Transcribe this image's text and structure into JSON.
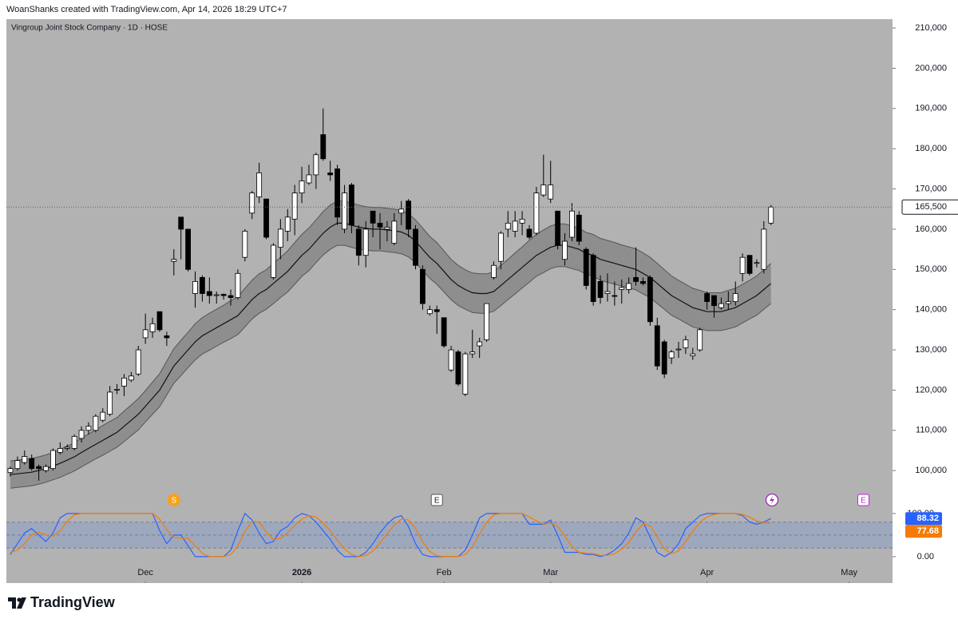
{
  "header": "WoanShanks created with TradingView.com, Apr 14, 2026 18:29 UTC+7",
  "brand": "TradingView",
  "chart_data": [
    {
      "type": "candlestick",
      "title": "Vingroup Joint Stock Company · 1D · HOSE",
      "up_color": "#ffffff",
      "down_color": "#000000",
      "grid": false,
      "xlim": [
        -0.56,
        124.1
      ],
      "xticks": [
        {
          "value": 19,
          "label": "Dec"
        },
        {
          "value": 41,
          "label": "2026"
        },
        {
          "value": 61,
          "label": "Feb"
        },
        {
          "value": 76,
          "label": "Mar"
        },
        {
          "value": 98,
          "label": "Apr"
        },
        {
          "value": 118,
          "label": "May"
        }
      ],
      "ylim": [
        90500,
        212200
      ],
      "yticks": [
        {
          "value": 100000,
          "label": "100,000"
        },
        {
          "value": 110000,
          "label": "110,000"
        },
        {
          "value": 120000,
          "label": "120,000"
        },
        {
          "value": 130000,
          "label": "130,000"
        },
        {
          "value": 140000,
          "label": "140,000"
        },
        {
          "value": 150000,
          "label": "150,000"
        },
        {
          "value": 160000,
          "label": "160,000"
        },
        {
          "value": 170000,
          "label": "170,000"
        },
        {
          "value": 180000,
          "label": "180,000"
        },
        {
          "value": 190000,
          "label": "190,000"
        },
        {
          "value": 200000,
          "label": "200,000"
        },
        {
          "value": 210000,
          "label": "210,000"
        }
      ],
      "open": [
        99500,
        100500,
        102000,
        103000,
        101000,
        100000,
        100500,
        104500,
        105500,
        105500,
        108000,
        110000,
        110000,
        112500,
        114000,
        120000,
        121000,
        122500,
        124000,
        133000,
        134500,
        139500,
        133500,
        152000,
        163000,
        160000,
        144000,
        148000,
        144500,
        143500,
        143800,
        143500,
        143000,
        153000,
        164000,
        168000,
        167500,
        148000,
        155500,
        159500,
        162500,
        169000,
        171500,
        173500,
        183500,
        174000,
        175000,
        160000,
        171000,
        160000,
        153500,
        164500,
        161500,
        160000,
        156500,
        164000,
        167000,
        160000,
        150000,
        139000,
        140000,
        138000,
        125000,
        129500,
        119000,
        129000,
        131000,
        132500,
        148000,
        152000,
        160000,
        159500,
        161500,
        160000,
        159000,
        168500,
        167500,
        164500,
        152500,
        158000,
        163500,
        155000,
        153500,
        147000,
        144000,
        143500,
        145000,
        145000,
        148000,
        147000,
        148000,
        136000,
        132000,
        128000,
        130000,
        130500,
        128500,
        130000,
        144000,
        143500,
        140500,
        141500,
        142000,
        149000,
        153500,
        151500,
        150000,
        161500
      ],
      "high": [
        101000,
        103500,
        105000,
        104000,
        101500,
        101500,
        105500,
        107000,
        106500,
        109000,
        111000,
        112000,
        114000,
        115500,
        121000,
        121500,
        124000,
        124500,
        131000,
        139000,
        138000,
        139500,
        134500,
        155000,
        163000,
        160000,
        149500,
        148500,
        148000,
        144500,
        144000,
        145000,
        150000,
        160000,
        169500,
        176500,
        167500,
        156500,
        162500,
        165000,
        171000,
        175500,
        176000,
        179000,
        190000,
        177000,
        176000,
        171000,
        171500,
        161000,
        162000,
        164500,
        164000,
        162000,
        164000,
        167000,
        167500,
        161000,
        151000,
        141000,
        141000,
        138000,
        131000,
        130000,
        129500,
        135000,
        133000,
        141500,
        152000,
        159500,
        164500,
        164500,
        164500,
        161000,
        170500,
        178500,
        177000,
        164500,
        159000,
        166500,
        164500,
        155500,
        154000,
        148500,
        149000,
        147000,
        147500,
        148000,
        155500,
        148000,
        148500,
        138000,
        132500,
        130000,
        132000,
        133500,
        130500,
        135500,
        144500,
        143500,
        143000,
        144500,
        147000,
        154000,
        153500,
        152500,
        162000,
        166000
      ],
      "low": [
        98500,
        100000,
        101500,
        100000,
        97500,
        99500,
        100000,
        104000,
        105000,
        105000,
        107000,
        109000,
        109500,
        112000,
        113500,
        119000,
        118500,
        122000,
        123500,
        131500,
        133000,
        134500,
        131000,
        148500,
        152500,
        149500,
        140500,
        142000,
        141500,
        141500,
        142500,
        141000,
        142500,
        152000,
        162500,
        166500,
        157500,
        147500,
        152500,
        157000,
        158500,
        166500,
        171000,
        170000,
        177000,
        172000,
        161000,
        159000,
        159000,
        151000,
        150500,
        158000,
        155000,
        157000,
        156000,
        161000,
        158000,
        150000,
        140000,
        138500,
        134000,
        130500,
        124500,
        121000,
        118500,
        128000,
        128000,
        132000,
        147500,
        150000,
        158000,
        158000,
        158500,
        157500,
        158500,
        168000,
        166500,
        155000,
        151000,
        157000,
        156000,
        145000,
        141000,
        141500,
        142000,
        141000,
        141500,
        144000,
        146000,
        146000,
        136000,
        125000,
        123000,
        126500,
        128000,
        129000,
        127500,
        129500,
        140000,
        138000,
        140000,
        140000,
        141000,
        147000,
        148500,
        150500,
        149000,
        161000
      ],
      "close": [
        100500,
        102500,
        103500,
        100500,
        100500,
        101000,
        105000,
        105500,
        105800,
        108500,
        110000,
        111000,
        113500,
        114500,
        119500,
        120200,
        123000,
        123500,
        130000,
        135000,
        136500,
        135000,
        133000,
        152500,
        160000,
        150000,
        147000,
        144000,
        143500,
        143700,
        143500,
        143000,
        149000,
        159500,
        169000,
        174000,
        158000,
        156000,
        160000,
        163000,
        169000,
        172000,
        173500,
        178500,
        177500,
        173500,
        163000,
        169000,
        161000,
        153500,
        160000,
        161500,
        160500,
        160500,
        162000,
        165000,
        160000,
        151000,
        141500,
        140000,
        139500,
        131000,
        130000,
        121500,
        129000,
        129500,
        132000,
        141500,
        151000,
        159000,
        161500,
        162000,
        162500,
        158000,
        169000,
        171000,
        171000,
        156000,
        157000,
        164500,
        157000,
        146000,
        142000,
        143000,
        144500,
        143300,
        145500,
        146500,
        147000,
        146500,
        137000,
        126000,
        124000,
        129500,
        130200,
        132500,
        129000,
        135000,
        142000,
        141000,
        141500,
        142000,
        144000,
        153000,
        149000,
        151700,
        160000,
        165500
      ],
      "last_close": {
        "value": 165500,
        "label": "165,500"
      },
      "band_fill": "#8e8e8e",
      "series": [
        {
          "color": "#555555",
          "values": [
            102400,
            102600,
            102800,
            103000,
            103400,
            103900,
            104500,
            105300,
            106100,
            106900,
            108100,
            109100,
            110100,
            111200,
            112200,
            113200,
            114800,
            116300,
            117900,
            119900,
            122000,
            124100,
            127200,
            130300,
            132400,
            134400,
            136500,
            138000,
            139100,
            140100,
            141100,
            142200,
            143200,
            145300,
            147300,
            148900,
            149900,
            151500,
            153000,
            154600,
            156700,
            158700,
            160300,
            162300,
            164400,
            166000,
            167000,
            167000,
            166500,
            166000,
            165600,
            165400,
            165400,
            165200,
            165000,
            164700,
            163900,
            162300,
            160300,
            158200,
            156700,
            154600,
            152500,
            151000,
            149900,
            149100,
            148900,
            148900,
            149400,
            151000,
            152500,
            154100,
            155600,
            157200,
            158700,
            159800,
            160800,
            161300,
            161300,
            160800,
            160300,
            159200,
            158700,
            157700,
            157200,
            156700,
            156100,
            155600,
            155100,
            154100,
            153000,
            151500,
            149900,
            148400,
            147300,
            146300,
            145300,
            144800,
            144200,
            144200,
            144200,
            144800,
            145300,
            146300,
            147300,
            148400,
            149900,
            151500
          ]
        },
        {
          "color": "#111111",
          "values": [
            99000,
            99200,
            99400,
            99600,
            100000,
            100500,
            101100,
            101800,
            102600,
            103400,
            104500,
            105500,
            106500,
            107500,
            108500,
            109500,
            111000,
            112500,
            114000,
            116000,
            118000,
            120000,
            123000,
            126000,
            128000,
            130000,
            132000,
            133500,
            134500,
            135500,
            136500,
            137500,
            138500,
            140500,
            142500,
            144000,
            145000,
            146500,
            148000,
            149500,
            151500,
            153500,
            155000,
            157000,
            159000,
            160500,
            161500,
            161500,
            161000,
            160500,
            160200,
            160000,
            160000,
            159800,
            159600,
            159300,
            158500,
            157000,
            155000,
            153000,
            151500,
            149500,
            147500,
            146000,
            145000,
            144200,
            144000,
            144000,
            144500,
            146000,
            147500,
            149000,
            150500,
            152000,
            153500,
            154500,
            155500,
            156000,
            156000,
            155500,
            155000,
            154000,
            153500,
            152500,
            152000,
            151500,
            151000,
            150500,
            150000,
            149000,
            148000,
            146500,
            145000,
            143500,
            142500,
            141500,
            140500,
            140000,
            139500,
            139500,
            139500,
            140000,
            140500,
            141500,
            142500,
            143500,
            145000,
            146500
          ]
        },
        {
          "color": "#555555",
          "values": [
            95600,
            95800,
            96000,
            96200,
            96600,
            97100,
            97700,
            98300,
            99100,
            99900,
            100900,
            101900,
            102900,
            103800,
            104800,
            105800,
            107200,
            108700,
            110100,
            112100,
            114000,
            115900,
            118800,
            121700,
            123600,
            125600,
            127500,
            129000,
            129900,
            130900,
            131900,
            132800,
            133800,
            135700,
            137700,
            139100,
            140100,
            141500,
            143000,
            144400,
            146300,
            148300,
            149700,
            151700,
            153600,
            155000,
            156000,
            156000,
            155500,
            155000,
            154800,
            154600,
            154600,
            154400,
            154200,
            153900,
            153100,
            151700,
            149700,
            147800,
            146300,
            144400,
            142500,
            141000,
            140100,
            139300,
            139100,
            139100,
            139600,
            141000,
            142500,
            143900,
            145400,
            146800,
            148300,
            149200,
            150200,
            150700,
            150700,
            150200,
            149700,
            148800,
            148300,
            147300,
            146800,
            146300,
            145900,
            145400,
            144900,
            143900,
            143000,
            141500,
            140100,
            138600,
            137700,
            136700,
            135700,
            135200,
            134800,
            134800,
            134800,
            135200,
            135700,
            136700,
            137700,
            138600,
            140100,
            141500
          ]
        }
      ],
      "events": [
        {
          "x": 23,
          "label": "S"
        },
        {
          "x": 60,
          "label": "E"
        },
        {
          "x": 120,
          "label": "E"
        }
      ]
    },
    {
      "type": "stochastic",
      "xlim": [
        -0.56,
        124.1
      ],
      "ylim": [
        -15,
        111
      ],
      "yticks": [
        {
          "value": 0,
          "label": "0.00"
        },
        {
          "value": 100,
          "label": "100.00"
        }
      ],
      "levels": [
        20,
        50,
        80
      ],
      "series": [
        {
          "color": "#2962ff",
          "values": [
            5,
            30,
            55,
            65,
            50,
            35,
            55,
            90,
            100,
            100,
            100,
            100,
            100,
            100,
            100,
            100,
            100,
            100,
            100,
            100,
            100,
            60,
            30,
            50,
            50,
            25,
            0,
            0,
            0,
            0,
            0,
            15,
            60,
            100,
            85,
            55,
            30,
            35,
            60,
            70,
            90,
            100,
            95,
            80,
            60,
            40,
            15,
            0,
            0,
            0,
            10,
            30,
            55,
            75,
            90,
            95,
            70,
            30,
            5,
            0,
            0,
            0,
            0,
            0,
            15,
            50,
            90,
            100,
            100,
            100,
            100,
            100,
            100,
            75,
            75,
            75,
            85,
            50,
            10,
            10,
            10,
            5,
            5,
            0,
            5,
            15,
            30,
            55,
            90,
            80,
            45,
            10,
            0,
            10,
            30,
            65,
            80,
            95,
            100,
            100,
            100,
            100,
            100,
            95,
            80,
            75,
            80,
            88.32
          ]
        },
        {
          "color": "#f57c00",
          "values": [
            10,
            15,
            30,
            50,
            57,
            50,
            47,
            60,
            82,
            97,
            100,
            100,
            100,
            100,
            100,
            100,
            100,
            100,
            100,
            100,
            100,
            87,
            62,
            45,
            43,
            42,
            25,
            8,
            0,
            0,
            0,
            5,
            25,
            58,
            82,
            80,
            57,
            40,
            42,
            55,
            73,
            87,
            95,
            92,
            78,
            60,
            38,
            18,
            5,
            0,
            3,
            13,
            32,
            53,
            73,
            87,
            85,
            65,
            35,
            12,
            2,
            0,
            0,
            0,
            5,
            22,
            52,
            80,
            97,
            100,
            100,
            100,
            100,
            92,
            83,
            75,
            78,
            70,
            48,
            23,
            10,
            8,
            7,
            3,
            3,
            7,
            17,
            33,
            58,
            75,
            72,
            45,
            18,
            7,
            13,
            35,
            58,
            80,
            92,
            98,
            100,
            100,
            100,
            98,
            92,
            83,
            78,
            77.68
          ]
        }
      ]
    }
  ]
}
